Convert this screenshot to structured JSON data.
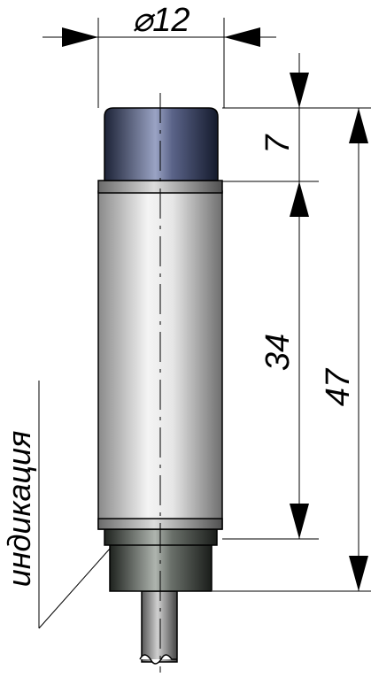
{
  "dimensions": {
    "diameter_label": "⌀12",
    "cap_height": "7",
    "body_height": "34",
    "total_height": "47"
  },
  "annotation": {
    "indication_label": "индикация"
  },
  "colors": {
    "cap_dark": "#1c2236",
    "cap_light": "#9aa3c4",
    "body_light": "#f2f2f2",
    "body_shadow": "#7a7a7a",
    "base_dark": "#2b2f2b",
    "base_light": "#aeb4ae",
    "cable": "#8a8a8a"
  }
}
